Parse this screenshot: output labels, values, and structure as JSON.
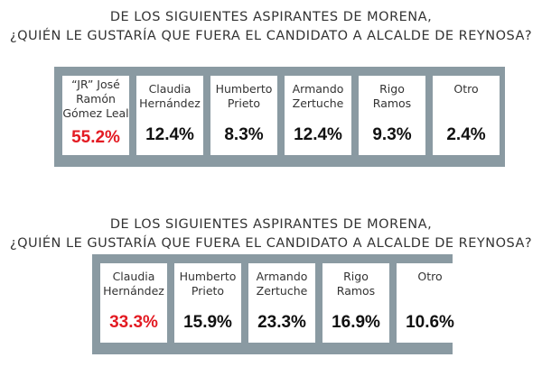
{
  "chart_data": [
    {
      "type": "table",
      "title_line1": "DE LOS SIGUIENTES ASPIRANTES DE MORENA,",
      "title_line2": "¿QUIÉN LE GUSTARÍA QUE FUERA EL CANDIDATO A ALCALDE DE REYNOSA?",
      "categories": [
        [
          "“JR” José",
          "Ramón",
          "Gómez Leal"
        ],
        [
          "Claudia",
          "Hernández"
        ],
        [
          "Humberto",
          "Prieto"
        ],
        [
          "Armando",
          "Zertuche"
        ],
        [
          "Rigo",
          "Ramos"
        ],
        [
          "Otro"
        ]
      ],
      "values": [
        "55.2%",
        "12.4%",
        "8.3%",
        "12.4%",
        "9.3%",
        "2.4%"
      ],
      "highlight_color": "#e31b23",
      "panel_color": "#8a9aa2"
    },
    {
      "type": "table",
      "title_line1": "DE LOS SIGUIENTES ASPIRANTES DE MORENA,",
      "title_line2": "¿QUIÉN LE GUSTARÍA QUE FUERA EL CANDIDATO A ALCALDE DE REYNOSA?",
      "categories": [
        [
          "Claudia",
          "Hernández"
        ],
        [
          "Humberto",
          "Prieto"
        ],
        [
          "Armando",
          "Zertuche"
        ],
        [
          "Rigo",
          "Ramos"
        ],
        [
          "Otro"
        ]
      ],
      "values": [
        "33.3%",
        "15.9%",
        "23.3%",
        "16.9%",
        "10.6%"
      ],
      "highlight_color": "#e31b23",
      "panel_color": "#8a9aa2"
    }
  ]
}
